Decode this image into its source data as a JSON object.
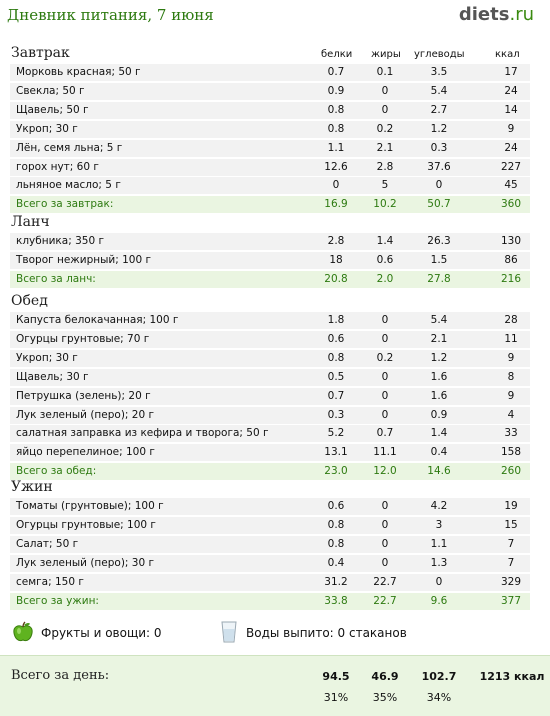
{
  "header": {
    "title": "Дневник питания, 7 июня",
    "logo_bold": "diets",
    "logo_rest": ".ru"
  },
  "columns": [
    "белки",
    "жиры",
    "углеводы",
    "ккал"
  ],
  "sections": [
    {
      "title": "Завтрак",
      "items": [
        {
          "name": "Морковь красная; 50 г",
          "protein": "0.7",
          "fat": "0.1",
          "carbs": "3.5",
          "kcal": "17"
        },
        {
          "name": "Свекла; 50 г",
          "protein": "0.9",
          "fat": "0",
          "carbs": "5.4",
          "kcal": "24"
        },
        {
          "name": "Щавель; 50 г",
          "protein": "0.8",
          "fat": "0",
          "carbs": "2.7",
          "kcal": "14"
        },
        {
          "name": "Укроп; 30 г",
          "protein": "0.8",
          "fat": "0.2",
          "carbs": "1.2",
          "kcal": "9"
        },
        {
          "name": "Лён, семя льна; 5 г",
          "protein": "1.1",
          "fat": "2.1",
          "carbs": "0.3",
          "kcal": "24"
        },
        {
          "name": "горох нут; 60 г",
          "protein": "12.6",
          "fat": "2.8",
          "carbs": "37.6",
          "kcal": "227"
        },
        {
          "name": "льняное масло; 5 г",
          "protein": "0",
          "fat": "5",
          "carbs": "0",
          "kcal": "45"
        }
      ],
      "total": {
        "name": "Всего за завтрак:",
        "protein": "16.9",
        "fat": "10.2",
        "carbs": "50.7",
        "kcal": "360"
      }
    },
    {
      "title": "Ланч",
      "items": [
        {
          "name": "клубника; 350 г",
          "protein": "2.8",
          "fat": "1.4",
          "carbs": "26.3",
          "kcal": "130"
        },
        {
          "name": "Творог нежирный; 100 г",
          "protein": "18",
          "fat": "0.6",
          "carbs": "1.5",
          "kcal": "86"
        }
      ],
      "total": {
        "name": "Всего за ланч:",
        "protein": "20.8",
        "fat": "2.0",
        "carbs": "27.8",
        "kcal": "216"
      }
    },
    {
      "title": "Обед",
      "items": [
        {
          "name": "Капуста белокачанная; 100 г",
          "protein": "1.8",
          "fat": "0",
          "carbs": "5.4",
          "kcal": "28"
        },
        {
          "name": "Огурцы грунтовые; 70 г",
          "protein": "0.6",
          "fat": "0",
          "carbs": "2.1",
          "kcal": "11"
        },
        {
          "name": "Укроп; 30 г",
          "protein": "0.8",
          "fat": "0.2",
          "carbs": "1.2",
          "kcal": "9"
        },
        {
          "name": "Щавель; 30 г",
          "protein": "0.5",
          "fat": "0",
          "carbs": "1.6",
          "kcal": "8"
        },
        {
          "name": "Петрушка (зелень); 20 г",
          "protein": "0.7",
          "fat": "0",
          "carbs": "1.6",
          "kcal": "9"
        },
        {
          "name": "Лук зеленый (перо); 20 г",
          "protein": "0.3",
          "fat": "0",
          "carbs": "0.9",
          "kcal": "4"
        },
        {
          "name": "салатная заправка из кефира и творога; 50 г",
          "protein": "5.2",
          "fat": "0.7",
          "carbs": "1.4",
          "kcal": "33"
        },
        {
          "name": "яйцо перепелиное; 100 г",
          "protein": "13.1",
          "fat": "11.1",
          "carbs": "0.4",
          "kcal": "158"
        }
      ],
      "total": {
        "name": "Всего за обед:",
        "protein": "23.0",
        "fat": "12.0",
        "carbs": "14.6",
        "kcal": "260"
      }
    },
    {
      "title": "Ужин",
      "items": [
        {
          "name": "Томаты (грунтовые); 100 г",
          "protein": "0.6",
          "fat": "0",
          "carbs": "4.2",
          "kcal": "19"
        },
        {
          "name": "Огурцы грунтовые; 100 г",
          "protein": "0.8",
          "fat": "0",
          "carbs": "3",
          "kcal": "15"
        },
        {
          "name": "Салат; 50 г",
          "protein": "0.8",
          "fat": "0",
          "carbs": "1.1",
          "kcal": "7"
        },
        {
          "name": "Лук зеленый (перо); 30 г",
          "protein": "0.4",
          "fat": "0",
          "carbs": "1.3",
          "kcal": "7"
        },
        {
          "name": "семга; 150 г",
          "protein": "31.2",
          "fat": "22.7",
          "carbs": "0",
          "kcal": "329"
        }
      ],
      "total": {
        "name": "Всего за ужин:",
        "protein": "33.8",
        "fat": "22.7",
        "carbs": "9.6",
        "kcal": "377"
      }
    }
  ],
  "extras": {
    "fruits": "Фрукты и овощи: 0",
    "water": "Воды выпито: 0 стаканов",
    "fruit_icon": "green-apple-icon",
    "water_icon": "glass-icon"
  },
  "day_total": {
    "label": "Всего за день:",
    "protein": "94.5",
    "fat": "46.9",
    "carbs": "102.7",
    "kcal": "1213 ккал",
    "protein_pct": "31%",
    "fat_pct": "35%",
    "carbs_pct": "34%"
  },
  "colors": {
    "accent_green": "#2d7a10",
    "food_row_bg": "#f2f2f2",
    "total_row_bg": "#eaf5e1"
  }
}
